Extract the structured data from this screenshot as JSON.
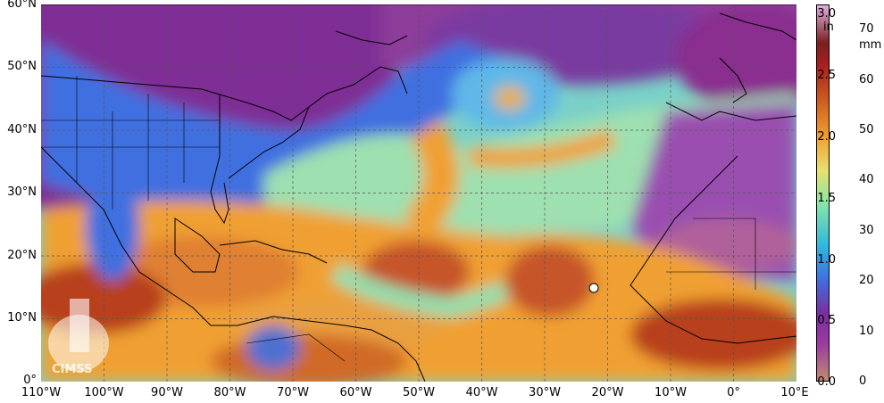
{
  "lat_labels": [
    "60°N",
    "50°N",
    "40°N",
    "30°N",
    "20°N",
    "10°N",
    "0°"
  ],
  "lon_labels": [
    "110°W",
    "100°W",
    "90°W",
    "80°W",
    "70°W",
    "60°W",
    "50°W",
    "40°W",
    "30°W",
    "20°W",
    "10°W",
    "0°",
    "10°E"
  ],
  "colorbar": {
    "in_unit": "in",
    "mm_unit": "mm",
    "in_ticks": [
      "3.0",
      "2.5",
      "2.0",
      "1.5",
      "1.0",
      "0.5",
      "0.0"
    ],
    "mm_ticks": [
      "70",
      "60",
      "50",
      "40",
      "30",
      "20",
      "10",
      "0"
    ]
  },
  "logo_text": "CIMSS",
  "colors": {
    "dry": "#8a2f8f",
    "low": "#2f5fd0",
    "mid": "#7fe0b0",
    "moist": "#f0a030",
    "wet": "#a8281e",
    "land_line": "#000000"
  }
}
